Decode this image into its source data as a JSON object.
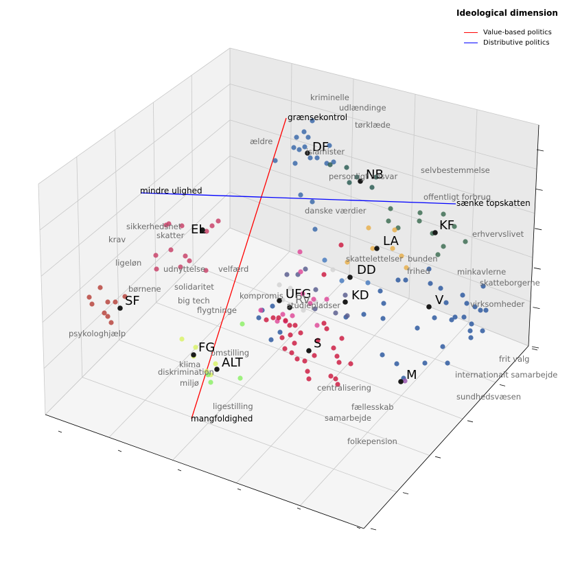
{
  "chart_data": {
    "type": "scatter",
    "subtype": "3d-scatter-with-word-embeddings",
    "grid": true,
    "legend_position": "top-right",
    "legend": {
      "title": "Ideological dimension",
      "entries": [
        {
          "label": "Value-based politics",
          "color": "#ff0000"
        },
        {
          "label": "Distributive politics",
          "color": "#0000ff"
        }
      ]
    },
    "axes_tick_labels_visible": false,
    "axis_lines": [
      {
        "name": "Value-based politics",
        "color": "#ff0000",
        "from_label": "mangfoldighed",
        "to_label": "grænsekontrol"
      },
      {
        "name": "Distributive politics",
        "color": "#0000ff",
        "from_label": "mindre ulighed",
        "to_label": "sænke topskatten"
      }
    ],
    "party_labels": [
      "DF",
      "NB",
      "EL",
      "KF",
      "LA",
      "DD",
      "SF",
      "UFG",
      "KD",
      "V",
      "FG",
      "ALT",
      "S",
      "M",
      "RV"
    ],
    "word_labels": [
      "kriminelle",
      "udlændinge",
      "tørklæde",
      "ældre",
      "islamister",
      "personligt ansvar",
      "selvbestemmelse",
      "offentligt forbrug",
      "danske værdier",
      "erhvervslivet",
      "sikkerhedsnet",
      "skatter",
      "krav",
      "ligeløn",
      "udnyttelse",
      "velfærd",
      "børnene",
      "solidaritet",
      "big tech",
      "flygtninge",
      "skattelettelser",
      "bunden",
      "frihed",
      "minkavlerne",
      "skatteborgerne",
      "virksomheder",
      "kompromis",
      "studiepladser",
      "psykologhjælp",
      "omstilling",
      "klima",
      "diskrimination",
      "miljø",
      "centralisering",
      "fællesskab",
      "ligestilling",
      "samarbejde",
      "folkepension",
      "frit valg",
      "internationalt samarbejde",
      "sundhedsvæsen"
    ],
    "series": [
      {
        "name": "DF",
        "color": "#3d6baa"
      },
      {
        "name": "NB",
        "color": "#2f5f57"
      },
      {
        "name": "EL",
        "color": "#c9446b"
      },
      {
        "name": "KF",
        "color": "#3f6e55"
      },
      {
        "name": "LA",
        "color": "#e8b04f"
      },
      {
        "name": "DD",
        "color": "#4a7dc0"
      },
      {
        "name": "SF",
        "color": "#b9463f"
      },
      {
        "name": "UFG",
        "color": "#d4d4d4"
      },
      {
        "name": "KD",
        "color": "#5c5f8f"
      },
      {
        "name": "V",
        "color": "#2f5ba0"
      },
      {
        "name": "FG",
        "color": "#d9f26a"
      },
      {
        "name": "ALT",
        "color": "#8ef06a"
      },
      {
        "name": "S",
        "color": "#cc1f44"
      },
      {
        "name": "M",
        "color": "#9a58b0"
      },
      {
        "name": "RV",
        "color": "#de4c9a"
      }
    ]
  }
}
